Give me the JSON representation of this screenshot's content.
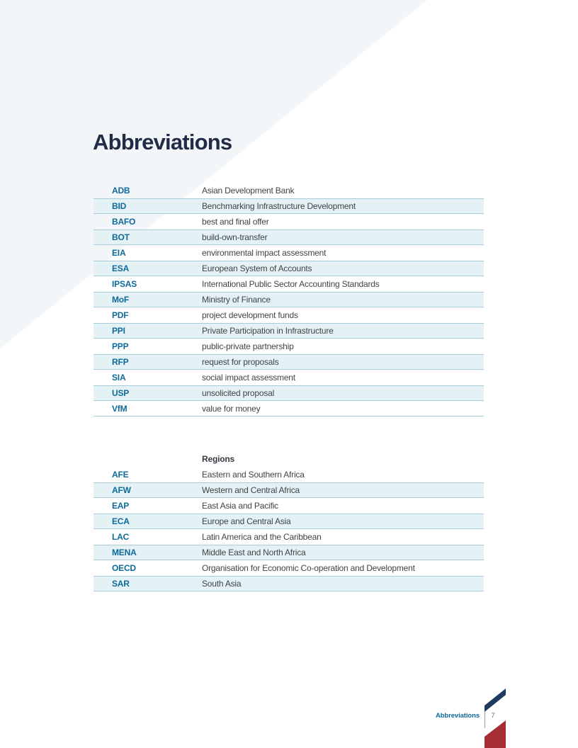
{
  "title": "Abbreviations",
  "colors": {
    "accent_blue": "#0E6A9B",
    "title_navy": "#232C47",
    "text_dark": "#3F4448",
    "row_shade": "#E4F1F5",
    "row_border": "#A8CCD9",
    "background_triangle": "#F2F6F8",
    "ribbon_navy": "#1E3A5F",
    "ribbon_red": "#A52E34",
    "page_number_gray": "#6E6E6E"
  },
  "abbreviations": [
    {
      "term": "ADB",
      "definition": "Asian Development Bank"
    },
    {
      "term": "BID",
      "definition": "Benchmarking Infrastructure Development"
    },
    {
      "term": "BAFO",
      "definition": "best and final offer"
    },
    {
      "term": "BOT",
      "definition": "build-own-transfer"
    },
    {
      "term": "EIA",
      "definition": "environmental impact assessment"
    },
    {
      "term": "ESA",
      "definition": "European System of Accounts"
    },
    {
      "term": "IPSAS",
      "definition": "International Public Sector Accounting Standards"
    },
    {
      "term": "MoF",
      "definition": "Ministry of Finance"
    },
    {
      "term": "PDF",
      "definition": "project development funds"
    },
    {
      "term": "PPI",
      "definition": "Private Participation in Infrastructure"
    },
    {
      "term": "PPP",
      "definition": "public-private partnership"
    },
    {
      "term": "RFP",
      "definition": "request for proposals"
    },
    {
      "term": "SIA",
      "definition": "social impact assessment"
    },
    {
      "term": "USP",
      "definition": "unsolicited proposal"
    },
    {
      "term": "VfM",
      "definition": "value for money"
    }
  ],
  "regions_section": {
    "header": "Regions",
    "items": [
      {
        "term": "AFE",
        "definition": "Eastern and Southern Africa"
      },
      {
        "term": "AFW",
        "definition": "Western and Central Africa"
      },
      {
        "term": "EAP",
        "definition": "East Asia and Pacific"
      },
      {
        "term": "ECA",
        "definition": "Europe and Central Asia"
      },
      {
        "term": "LAC",
        "definition": "Latin America and the Caribbean"
      },
      {
        "term": "MENA",
        "definition": "Middle East and North Africa"
      },
      {
        "term": "OECD",
        "definition": "Organisation for Economic Co-operation and Development"
      },
      {
        "term": "SAR",
        "definition": "South Asia"
      }
    ]
  },
  "footer": {
    "section_label": "Abbreviations",
    "page_number": "7"
  }
}
